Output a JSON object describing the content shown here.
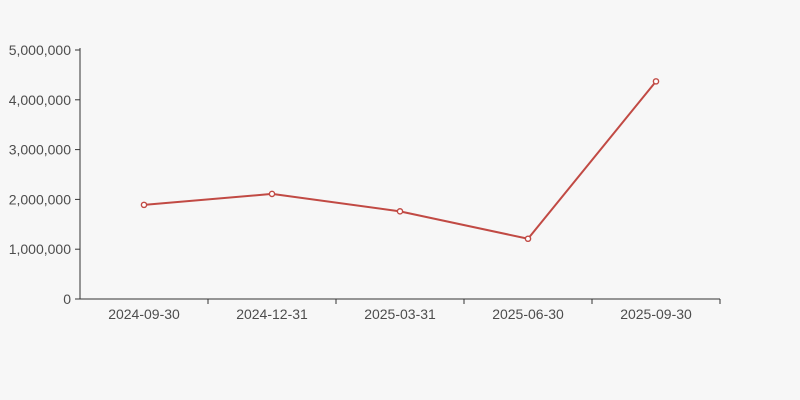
{
  "page": {
    "background_color": "#f7f7f7"
  },
  "chart_data": {
    "type": "line",
    "title": "",
    "xlabel": "",
    "ylabel": "",
    "categories": [
      "2024-09-30",
      "2024-12-31",
      "2025-03-31",
      "2025-06-30",
      "2025-09-30"
    ],
    "series": [
      {
        "name": "value",
        "values": [
          1890000,
          2110000,
          1760000,
          1210000,
          4370000
        ]
      }
    ],
    "ylim": [
      0,
      5000000
    ],
    "y_tick_interval": 1000000,
    "y_tick_labels": [
      "0",
      "1,000,000",
      "2,000,000",
      "3,000,000",
      "4,000,000",
      "5,000,000"
    ],
    "grid": false,
    "legend_position": "none",
    "line_color": "#c14a44",
    "marker_style": "hollow-circle",
    "marker_fill": "#ffffff",
    "axis_color": "#333333",
    "tick_label_color": "#4d4d4d"
  }
}
